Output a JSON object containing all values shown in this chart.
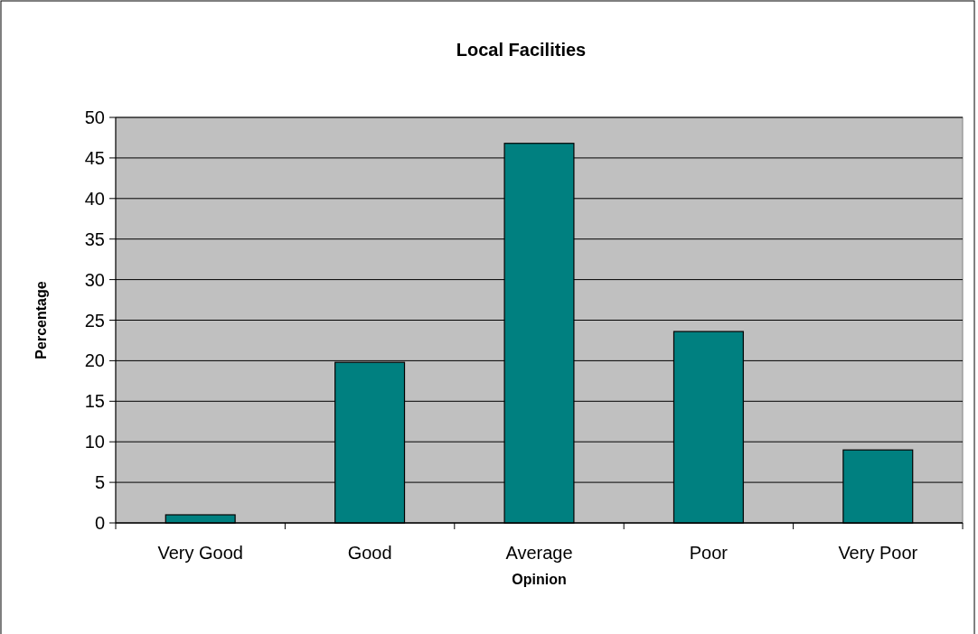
{
  "chart_data": {
    "type": "bar",
    "title": "Local Facilities",
    "xlabel": "Opinion",
    "ylabel": "Percentage",
    "categories": [
      "Very Good",
      "Good",
      "Average",
      "Poor",
      "Very Poor"
    ],
    "values": [
      1,
      19.8,
      46.8,
      23.6,
      9
    ],
    "color": "#008080",
    "ylim": [
      0,
      50
    ],
    "yticks": [
      0,
      5,
      10,
      15,
      20,
      25,
      30,
      35,
      40,
      45,
      50
    ],
    "grid": "y"
  }
}
